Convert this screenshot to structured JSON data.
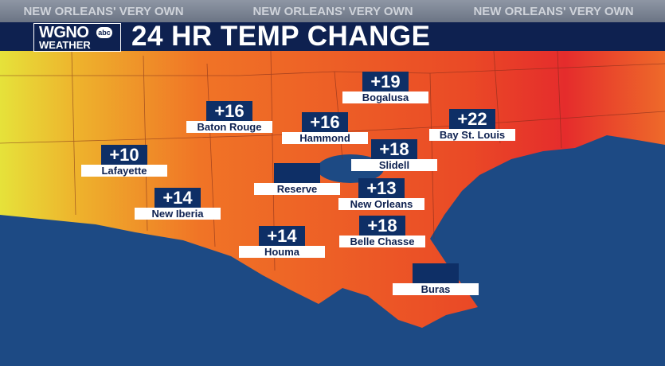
{
  "header": {
    "slogans": [
      "NEW ORLEANS' VERY OWN",
      "NEW ORLEANS' VERY OWN",
      "NEW ORLEANS' VERY OWN"
    ],
    "logo": {
      "call_sign": "WGNO",
      "network": "abc",
      "brand": "WEATHER"
    },
    "title": "24 HR TEMP CHANGE"
  },
  "cities": [
    {
      "name": "Bogalusa",
      "change": "+19"
    },
    {
      "name": "Baton Rouge",
      "change": "+16"
    },
    {
      "name": "Hammond",
      "change": "+16"
    },
    {
      "name": "Bay St. Louis",
      "change": "+22"
    },
    {
      "name": "Lafayette",
      "change": "+10"
    },
    {
      "name": "Slidell",
      "change": "+18"
    },
    {
      "name": "Reserve"
    },
    {
      "name": "New Orleans",
      "change": "+13"
    },
    {
      "name": "New Iberia",
      "change": "+14"
    },
    {
      "name": "Houma",
      "change": "+14"
    },
    {
      "name": "Belle Chasse",
      "change": "+18"
    },
    {
      "name": "Buras"
    }
  ]
}
